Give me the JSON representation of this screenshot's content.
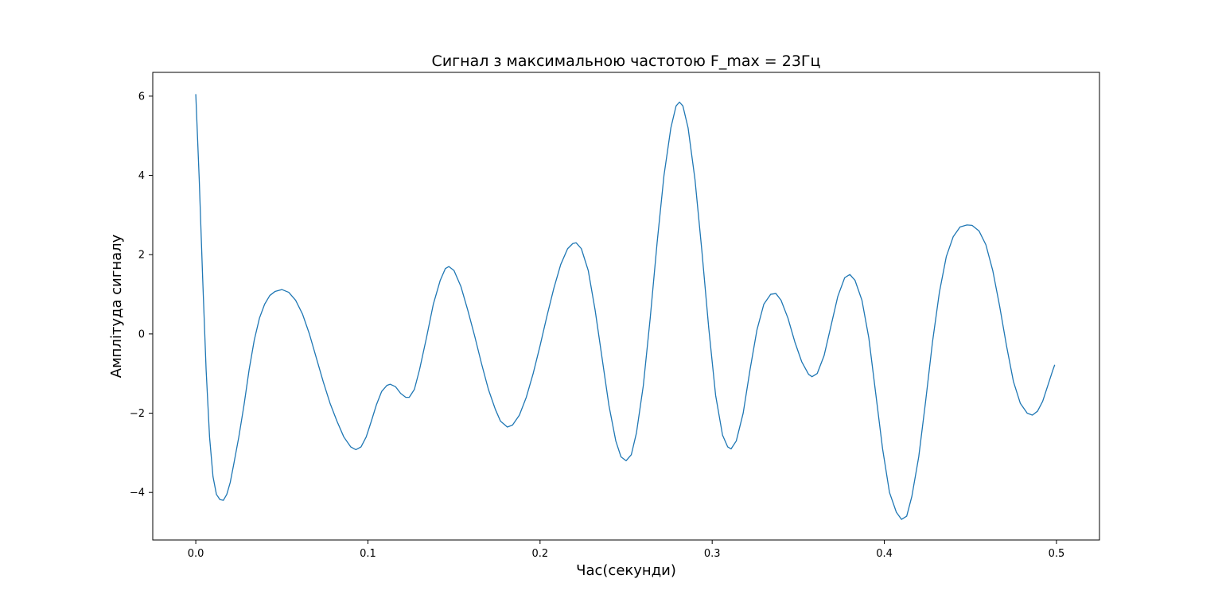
{
  "chart_data": {
    "type": "line",
    "title": "Сигнал з максимальною частотою F_max = 23Гц",
    "xlabel": "Час(секунди)",
    "ylabel": "Амплітуда сигналу",
    "xlim": [
      -0.025,
      0.525
    ],
    "ylim": [
      -5.2,
      6.6
    ],
    "grid": false,
    "legend": "none",
    "x_ticks": [
      0.0,
      0.1,
      0.2,
      0.3,
      0.4,
      0.5
    ],
    "x_tick_labels": [
      "0.0",
      "0.1",
      "0.2",
      "0.3",
      "0.4",
      "0.5"
    ],
    "y_ticks": [
      -4,
      -2,
      0,
      2,
      4,
      6
    ],
    "y_tick_labels": [
      "−4",
      "−2",
      "0",
      "2",
      "4",
      "6"
    ],
    "series": [
      {
        "color": "#1f77b4",
        "points": [
          [
            0.0,
            6.05
          ],
          [
            0.002,
            3.9
          ],
          [
            0.004,
            1.4
          ],
          [
            0.006,
            -0.9
          ],
          [
            0.008,
            -2.6
          ],
          [
            0.01,
            -3.6
          ],
          [
            0.012,
            -4.05
          ],
          [
            0.014,
            -4.18
          ],
          [
            0.016,
            -4.2
          ],
          [
            0.018,
            -4.05
          ],
          [
            0.02,
            -3.75
          ],
          [
            0.022,
            -3.3
          ],
          [
            0.025,
            -2.6
          ],
          [
            0.028,
            -1.8
          ],
          [
            0.031,
            -0.9
          ],
          [
            0.034,
            -0.15
          ],
          [
            0.037,
            0.4
          ],
          [
            0.04,
            0.75
          ],
          [
            0.043,
            0.97
          ],
          [
            0.046,
            1.07
          ],
          [
            0.05,
            1.12
          ],
          [
            0.054,
            1.05
          ],
          [
            0.058,
            0.85
          ],
          [
            0.062,
            0.5
          ],
          [
            0.066,
            0.0
          ],
          [
            0.07,
            -0.6
          ],
          [
            0.074,
            -1.2
          ],
          [
            0.078,
            -1.75
          ],
          [
            0.082,
            -2.2
          ],
          [
            0.086,
            -2.6
          ],
          [
            0.09,
            -2.85
          ],
          [
            0.093,
            -2.92
          ],
          [
            0.096,
            -2.85
          ],
          [
            0.099,
            -2.6
          ],
          [
            0.102,
            -2.2
          ],
          [
            0.105,
            -1.78
          ],
          [
            0.108,
            -1.45
          ],
          [
            0.111,
            -1.3
          ],
          [
            0.113,
            -1.27
          ],
          [
            0.116,
            -1.33
          ],
          [
            0.119,
            -1.5
          ],
          [
            0.122,
            -1.6
          ],
          [
            0.124,
            -1.6
          ],
          [
            0.127,
            -1.4
          ],
          [
            0.13,
            -0.9
          ],
          [
            0.134,
            -0.1
          ],
          [
            0.138,
            0.75
          ],
          [
            0.142,
            1.35
          ],
          [
            0.145,
            1.65
          ],
          [
            0.147,
            1.7
          ],
          [
            0.15,
            1.6
          ],
          [
            0.154,
            1.2
          ],
          [
            0.158,
            0.6
          ],
          [
            0.162,
            -0.05
          ],
          [
            0.166,
            -0.75
          ],
          [
            0.17,
            -1.4
          ],
          [
            0.174,
            -1.9
          ],
          [
            0.177,
            -2.2
          ],
          [
            0.181,
            -2.35
          ],
          [
            0.184,
            -2.3
          ],
          [
            0.188,
            -2.05
          ],
          [
            0.192,
            -1.6
          ],
          [
            0.196,
            -1.0
          ],
          [
            0.2,
            -0.3
          ],
          [
            0.204,
            0.45
          ],
          [
            0.208,
            1.15
          ],
          [
            0.212,
            1.75
          ],
          [
            0.216,
            2.15
          ],
          [
            0.219,
            2.28
          ],
          [
            0.221,
            2.3
          ],
          [
            0.224,
            2.15
          ],
          [
            0.228,
            1.6
          ],
          [
            0.232,
            0.6
          ],
          [
            0.236,
            -0.6
          ],
          [
            0.24,
            -1.8
          ],
          [
            0.244,
            -2.7
          ],
          [
            0.247,
            -3.1
          ],
          [
            0.25,
            -3.2
          ],
          [
            0.253,
            -3.05
          ],
          [
            0.256,
            -2.5
          ],
          [
            0.26,
            -1.3
          ],
          [
            0.264,
            0.4
          ],
          [
            0.268,
            2.3
          ],
          [
            0.272,
            4.0
          ],
          [
            0.276,
            5.2
          ],
          [
            0.279,
            5.75
          ],
          [
            0.281,
            5.85
          ],
          [
            0.283,
            5.75
          ],
          [
            0.286,
            5.2
          ],
          [
            0.29,
            3.9
          ],
          [
            0.294,
            2.1
          ],
          [
            0.298,
            0.15
          ],
          [
            0.302,
            -1.55
          ],
          [
            0.306,
            -2.55
          ],
          [
            0.309,
            -2.85
          ],
          [
            0.311,
            -2.9
          ],
          [
            0.314,
            -2.7
          ],
          [
            0.318,
            -2.0
          ],
          [
            0.322,
            -0.9
          ],
          [
            0.326,
            0.1
          ],
          [
            0.33,
            0.75
          ],
          [
            0.334,
            1.0
          ],
          [
            0.337,
            1.02
          ],
          [
            0.34,
            0.85
          ],
          [
            0.344,
            0.4
          ],
          [
            0.348,
            -0.2
          ],
          [
            0.352,
            -0.7
          ],
          [
            0.356,
            -1.02
          ],
          [
            0.358,
            -1.08
          ],
          [
            0.361,
            -1.0
          ],
          [
            0.365,
            -0.55
          ],
          [
            0.369,
            0.2
          ],
          [
            0.373,
            0.95
          ],
          [
            0.377,
            1.42
          ],
          [
            0.38,
            1.5
          ],
          [
            0.383,
            1.35
          ],
          [
            0.387,
            0.85
          ],
          [
            0.391,
            -0.1
          ],
          [
            0.395,
            -1.5
          ],
          [
            0.399,
            -2.9
          ],
          [
            0.403,
            -4.0
          ],
          [
            0.407,
            -4.5
          ],
          [
            0.41,
            -4.68
          ],
          [
            0.413,
            -4.6
          ],
          [
            0.416,
            -4.1
          ],
          [
            0.42,
            -3.1
          ],
          [
            0.424,
            -1.7
          ],
          [
            0.428,
            -0.2
          ],
          [
            0.432,
            1.05
          ],
          [
            0.436,
            1.95
          ],
          [
            0.44,
            2.45
          ],
          [
            0.444,
            2.7
          ],
          [
            0.448,
            2.75
          ],
          [
            0.451,
            2.74
          ],
          [
            0.455,
            2.6
          ],
          [
            0.459,
            2.25
          ],
          [
            0.463,
            1.6
          ],
          [
            0.467,
            0.7
          ],
          [
            0.471,
            -0.3
          ],
          [
            0.475,
            -1.2
          ],
          [
            0.479,
            -1.75
          ],
          [
            0.483,
            -2.0
          ],
          [
            0.486,
            -2.05
          ],
          [
            0.489,
            -1.95
          ],
          [
            0.492,
            -1.7
          ],
          [
            0.495,
            -1.3
          ],
          [
            0.498,
            -0.9
          ],
          [
            0.499,
            -0.78
          ]
        ]
      }
    ]
  }
}
